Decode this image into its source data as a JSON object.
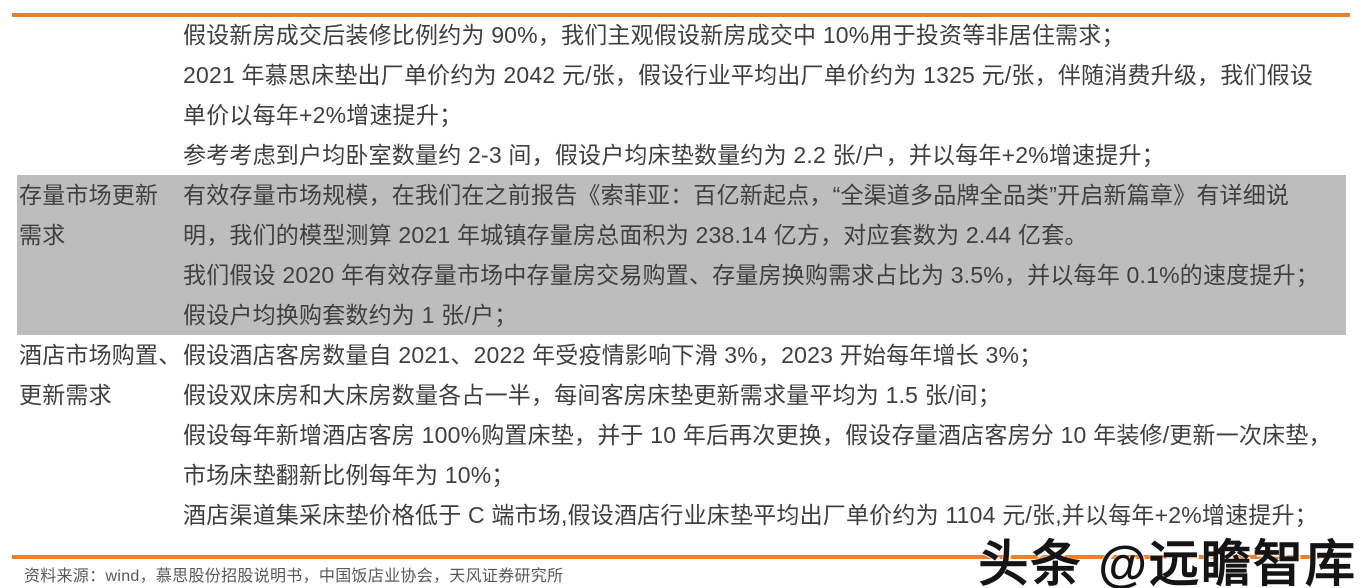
{
  "colors": {
    "accent_orange": "#E8802D",
    "highlight_row_gray": "#BDBDBD",
    "body_text": "#3F3F3F",
    "source_text": "#595959"
  },
  "table": {
    "rows": [
      {
        "header_lines": [
          "",
          ""
        ],
        "highlighted": false,
        "lines": [
          "假设新房成交后装修比例约为 90%，我们主观假设新房成交中 10%用于投资等非居住需求；",
          "2021 年慕思床垫出厂单价约为 2042 元/张，假设行业平均出厂单价约为 1325 元/张，伴随消费升级，我们假设",
          "单价以每年+2%增速提升；",
          "参考考虑到户均卧室数量约 2-3 间，假设户均床垫数量约为 2.2 张/户，并以每年+2%增速提升；"
        ]
      },
      {
        "header_lines": [
          "存量市场更新",
          "需求"
        ],
        "highlighted": true,
        "lines": [
          "有效存量市场规模，在我们在之前报告《索菲亚：百亿新起点，“全渠道多品牌全品类”开启新篇章》有详细说",
          "明，我们的模型测算 2021 年城镇存量房总面积为 238.14 亿方，对应套数为 2.44 亿套。",
          "我们假设 2020 年有效存量市场中存量房交易购置、存量房换购需求占比为 3.5%，并以每年 0.1%的速度提升；",
          "假设户均换购套数约为 1 张/户；"
        ]
      },
      {
        "header_lines": [
          "酒店市场购置、",
          "更新需求"
        ],
        "highlighted": false,
        "lines": [
          "假设酒店客房数量自 2021、2022 年受疫情影响下滑 3%，2023 开始每年增长 3%；",
          "假设双床房和大床房数量各占一半，每间客房床垫更新需求量平均为 1.5 张/间；",
          "假设每年新增酒店客房 100%购置床垫，并于 10 年后再次更换，假设存量酒店客房分 10 年装修/更新一次床垫，",
          "市场床垫翻新比例每年为 10%；",
          "酒店渠道集采床垫价格低于 C 端市场,假设酒店行业床垫平均出厂单价约为 1104 元/张,并以每年+2%增速提升；"
        ]
      }
    ]
  },
  "footer": {
    "source_text": "资料来源：wind，慕思股份招股说明书，中国饭店业协会，天风证券研究所"
  },
  "watermark": {
    "text": "头条 @远瞻智库"
  }
}
